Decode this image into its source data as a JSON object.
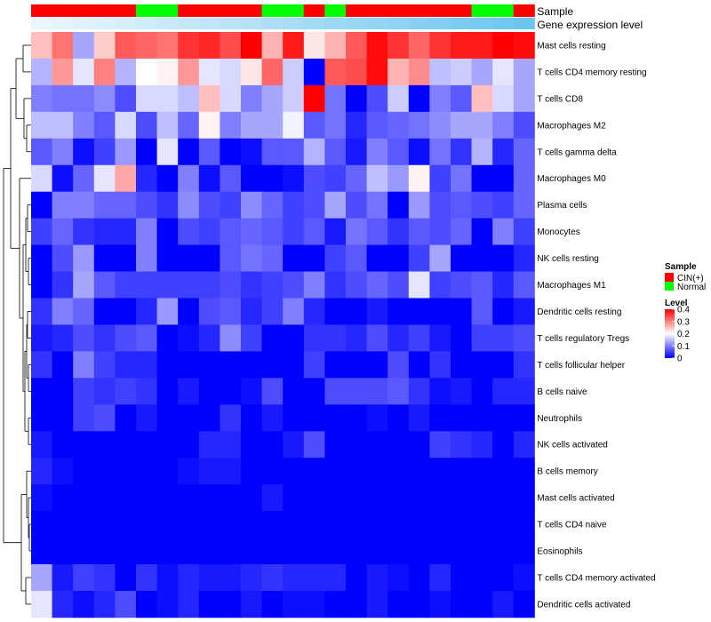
{
  "chart_data": {
    "type": "heatmap",
    "annotation_tracks": [
      {
        "name": "Sample"
      },
      {
        "name": "Gene expression level"
      }
    ],
    "sample_groups": [
      "CIN(+)",
      "CIN(+)",
      "CIN(+)",
      "CIN(+)",
      "CIN(+)",
      "Normal",
      "Normal",
      "CIN(+)",
      "CIN(+)",
      "CIN(+)",
      "CIN(+)",
      "Normal",
      "Normal",
      "CIN(+)",
      "Normal",
      "CIN(+)",
      "CIN(+)",
      "CIN(+)",
      "CIN(+)",
      "CIN(+)",
      "CIN(+)",
      "Normal",
      "Normal",
      "CIN(+)"
    ],
    "expression_level": [
      0.05,
      0.07,
      0.09,
      0.11,
      0.13,
      0.15,
      0.17,
      0.19,
      0.21,
      0.23,
      0.25,
      0.27,
      0.29,
      0.31,
      0.33,
      0.35,
      0.37,
      0.39,
      0.41,
      0.43,
      0.45,
      0.47,
      0.49,
      0.51
    ],
    "rows": [
      "Mast cells resting",
      "T cells CD4 memory resting",
      "T cells CD8",
      "Macrophages M2",
      "T cells gamma delta",
      "Macrophages M0",
      "Plasma cells",
      "Monocytes",
      "NK cells resting",
      "Macrophages M1",
      "Dendritic cells resting",
      "T cells regulatory  Tregs",
      "T cells follicular helper",
      "B cells naive",
      "Neutrophils",
      "NK cells activated",
      "B cells memory",
      "Mast cells activated",
      "T cells CD4 naive",
      "Eosinophils",
      "T cells CD4 memory activated",
      "Dendritic cells activated"
    ],
    "values": [
      [
        0.25,
        0.31,
        0.13,
        0.24,
        0.33,
        0.32,
        0.31,
        0.36,
        0.37,
        0.34,
        0.4,
        0.26,
        0.38,
        0.22,
        0.26,
        0.33,
        0.39,
        0.36,
        0.32,
        0.36,
        0.38,
        0.38,
        0.4,
        0.39
      ],
      [
        0.14,
        0.28,
        0.18,
        0.3,
        0.14,
        0.2,
        0.21,
        0.28,
        0.18,
        0.17,
        0.22,
        0.32,
        0.16,
        0.0,
        0.33,
        0.34,
        0.39,
        0.26,
        0.29,
        0.15,
        0.16,
        0.13,
        0.18,
        0.13
      ],
      [
        0.1,
        0.09,
        0.09,
        0.11,
        0.06,
        0.17,
        0.17,
        0.15,
        0.25,
        0.17,
        0.1,
        0.13,
        0.16,
        0.4,
        0.09,
        0.0,
        0.06,
        0.16,
        0.0,
        0.1,
        0.07,
        0.25,
        0.17,
        0.13
      ],
      [
        0.15,
        0.15,
        0.1,
        0.07,
        0.17,
        0.06,
        0.15,
        0.08,
        0.21,
        0.1,
        0.13,
        0.13,
        0.19,
        0.07,
        0.09,
        0.03,
        0.07,
        0.08,
        0.09,
        0.11,
        0.13,
        0.13,
        0.1,
        0.06
      ],
      [
        0.07,
        0.1,
        0.01,
        0.05,
        0.12,
        0.0,
        0.18,
        0.0,
        0.07,
        0.0,
        0.01,
        0.07,
        0.07,
        0.14,
        0.07,
        0.02,
        0.1,
        0.07,
        0.01,
        0.09,
        0.04,
        0.14,
        0.03,
        0.08
      ],
      [
        0.17,
        0.01,
        0.08,
        0.18,
        0.27,
        0.03,
        0.0,
        0.1,
        0.01,
        0.07,
        0.0,
        0.0,
        0.01,
        0.06,
        0.05,
        0.08,
        0.15,
        0.12,
        0.21,
        0.05,
        0.09,
        0.0,
        0.0,
        0.08
      ],
      [
        0.0,
        0.1,
        0.1,
        0.08,
        0.08,
        0.06,
        0.04,
        0.11,
        0.06,
        0.05,
        0.11,
        0.08,
        0.05,
        0.06,
        0.13,
        0.06,
        0.09,
        0.0,
        0.12,
        0.06,
        0.07,
        0.06,
        0.05,
        0.08
      ],
      [
        0.05,
        0.08,
        0.04,
        0.03,
        0.03,
        0.1,
        0.0,
        0.06,
        0.05,
        0.07,
        0.08,
        0.07,
        0.05,
        0.07,
        0.02,
        0.09,
        0.07,
        0.04,
        0.07,
        0.06,
        0.08,
        0.0,
        0.1,
        0.05
      ],
      [
        0.0,
        0.06,
        0.12,
        0.0,
        0.0,
        0.1,
        0.0,
        0.0,
        0.0,
        0.07,
        0.09,
        0.08,
        0.0,
        0.0,
        0.05,
        0.07,
        0.0,
        0.0,
        0.05,
        0.13,
        0.0,
        0.0,
        0.0,
        0.03
      ],
      [
        0.0,
        0.04,
        0.13,
        0.07,
        0.05,
        0.05,
        0.05,
        0.05,
        0.05,
        0.06,
        0.04,
        0.05,
        0.06,
        0.1,
        0.04,
        0.06,
        0.08,
        0.06,
        0.18,
        0.05,
        0.06,
        0.07,
        0.03,
        0.07
      ],
      [
        0.04,
        0.1,
        0.08,
        0.0,
        0.0,
        0.03,
        0.12,
        0.0,
        0.06,
        0.07,
        0.03,
        0.05,
        0.1,
        0.03,
        0.0,
        0.0,
        0.02,
        0.0,
        0.0,
        0.0,
        0.0,
        0.07,
        0.0,
        0.02
      ],
      [
        0.02,
        0.03,
        0.06,
        0.04,
        0.06,
        0.07,
        0.0,
        0.01,
        0.03,
        0.11,
        0.05,
        0.0,
        0.0,
        0.04,
        0.04,
        0.03,
        0.06,
        0.03,
        0.05,
        0.02,
        0.0,
        0.05,
        0.05,
        0.06
      ],
      [
        0.04,
        0.0,
        0.1,
        0.05,
        0.03,
        0.03,
        0.0,
        0.0,
        0.0,
        0.0,
        0.0,
        0.0,
        0.0,
        0.05,
        0.0,
        0.0,
        0.0,
        0.06,
        0.0,
        0.04,
        0.0,
        0.0,
        0.0,
        0.04
      ],
      [
        0.0,
        0.0,
        0.05,
        0.04,
        0.05,
        0.04,
        0.0,
        0.02,
        0.0,
        0.0,
        0.01,
        0.06,
        0.0,
        0.0,
        0.06,
        0.06,
        0.06,
        0.07,
        0.04,
        0.01,
        0.02,
        0.0,
        0.03,
        0.03
      ],
      [
        0.0,
        0.0,
        0.05,
        0.06,
        0.0,
        0.02,
        0.0,
        0.0,
        0.0,
        0.04,
        0.0,
        0.02,
        0.0,
        0.0,
        0.0,
        0.0,
        0.01,
        0.0,
        0.02,
        0.0,
        0.0,
        0.0,
        0.0,
        0.0
      ],
      [
        0.02,
        0.0,
        0.0,
        0.0,
        0.0,
        0.0,
        0.0,
        0.0,
        0.03,
        0.03,
        0.0,
        0.0,
        0.02,
        0.06,
        0.0,
        0.0,
        0.0,
        0.0,
        0.0,
        0.05,
        0.04,
        0.03,
        0.0,
        0.03
      ],
      [
        0.03,
        0.01,
        0.0,
        0.0,
        0.0,
        0.0,
        0.0,
        0.01,
        0.02,
        0.02,
        0.0,
        0.0,
        0.0,
        0.0,
        0.0,
        0.0,
        0.0,
        0.0,
        0.0,
        0.0,
        0.0,
        0.0,
        0.0,
        0.0
      ],
      [
        0.01,
        0.0,
        0.0,
        0.0,
        0.0,
        0.0,
        0.0,
        0.0,
        0.0,
        0.0,
        0.0,
        0.02,
        0.0,
        0.0,
        0.0,
        0.0,
        0.0,
        0.0,
        0.0,
        0.0,
        0.0,
        0.0,
        0.0,
        0.0
      ],
      [
        0.0,
        0.0,
        0.0,
        0.0,
        0.0,
        0.0,
        0.0,
        0.0,
        0.0,
        0.0,
        0.0,
        0.0,
        0.0,
        0.0,
        0.0,
        0.0,
        0.0,
        0.0,
        0.0,
        0.0,
        0.0,
        0.0,
        0.0,
        0.0
      ],
      [
        0.0,
        0.0,
        0.0,
        0.0,
        0.0,
        0.0,
        0.0,
        0.0,
        0.0,
        0.0,
        0.0,
        0.0,
        0.0,
        0.0,
        0.0,
        0.0,
        0.0,
        0.0,
        0.0,
        0.0,
        0.0,
        0.0,
        0.0,
        0.0
      ],
      [
        0.13,
        0.02,
        0.05,
        0.04,
        0.0,
        0.04,
        0.01,
        0.03,
        0.02,
        0.02,
        0.03,
        0.04,
        0.03,
        0.03,
        0.03,
        0.0,
        0.02,
        0.01,
        0.0,
        0.03,
        0.0,
        0.0,
        0.0,
        0.01
      ],
      [
        0.18,
        0.03,
        0.01,
        0.03,
        0.06,
        0.0,
        0.01,
        0.03,
        0.0,
        0.0,
        0.02,
        0.0,
        0.01,
        0.01,
        0.0,
        0.0,
        0.02,
        0.0,
        0.0,
        0.01,
        0.0,
        0.0,
        0.02,
        0.0
      ]
    ],
    "color_scale": {
      "min": 0,
      "mid": 0.2,
      "max": 0.4,
      "low_color": "#0000ff",
      "mid_color": "#ffffff",
      "high_color": "#ff0000"
    },
    "legend": {
      "placement": "right",
      "sample": {
        "title": "Sample",
        "entries": [
          {
            "label": "CIN(+)",
            "color": "#ff0000"
          },
          {
            "label": "Normal",
            "color": "#00ff00"
          }
        ]
      },
      "level": {
        "title": "Level",
        "ticks": [
          {
            "value": 0.4,
            "label": "0.4"
          },
          {
            "value": 0.3,
            "label": "0.3"
          },
          {
            "value": 0.2,
            "label": "0.2"
          },
          {
            "value": 0.1,
            "label": "0.1"
          },
          {
            "value": 0,
            "label": "0"
          }
        ]
      }
    },
    "expression_track_colors": {
      "low": "#eaf6fc",
      "high": "#6cc6f0"
    },
    "dendrogram": "rows"
  }
}
